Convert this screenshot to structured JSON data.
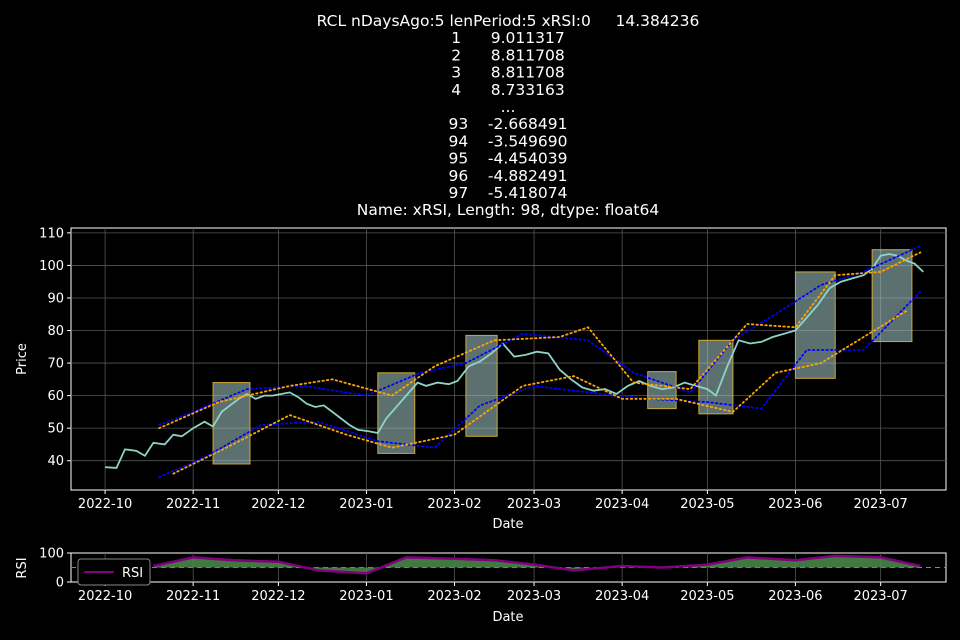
{
  "figure": {
    "title_lines": [
      "RCL nDaysAgo:5 lenPeriod:5 xRSI:0     14.384236",
      "1      9.011317",
      "2      8.811708",
      "3      8.811708",
      "4      8.733163",
      "...",
      "93    -2.668491",
      "94    -3.549690",
      "95    -4.454039",
      "96    -4.882491",
      "97    -5.418074",
      "Name: xRSI, Length: 98, dtype: float64"
    ]
  },
  "colors": {
    "price": "#8dd3c7",
    "bb_outer": "#0000ff",
    "bb_inner": "#ffa500",
    "shade": "#aacccc",
    "shade_edge": "#ccaa33",
    "rsi": "#800080",
    "rsi_fill": "#4c8c4c",
    "grid": "#555555"
  },
  "chart_data": [
    {
      "type": "line",
      "xlabel": "Date",
      "ylabel": "Price",
      "x_ticks": [
        "2022-10",
        "2022-11",
        "2022-12",
        "2023-01",
        "2023-02",
        "2023-03",
        "2023-04",
        "2023-05",
        "2023-06",
        "2023-07"
      ],
      "y_ticks": [
        40,
        50,
        60,
        70,
        80,
        90,
        100,
        110
      ],
      "xlim": [
        "2022-09-19",
        "2023-07-24"
      ],
      "ylim": [
        31,
        111.5
      ],
      "grid": true,
      "series": [
        {
          "role": "price",
          "points": [
            [
              "2022-10-01",
              38
            ],
            [
              "2022-10-05",
              37.8
            ],
            [
              "2022-10-08",
              43.5
            ],
            [
              "2022-10-12",
              43
            ],
            [
              "2022-10-15",
              41.5
            ],
            [
              "2022-10-18",
              45.5
            ],
            [
              "2022-10-22",
              45
            ],
            [
              "2022-10-25",
              48
            ],
            [
              "2022-10-28",
              47.5
            ],
            [
              "2022-11-01",
              50
            ],
            [
              "2022-11-05",
              52
            ],
            [
              "2022-11-08",
              50.5
            ],
            [
              "2022-11-11",
              55
            ],
            [
              "2022-11-14",
              57
            ],
            [
              "2022-11-17",
              59
            ],
            [
              "2022-11-20",
              60.5
            ],
            [
              "2022-11-23",
              59
            ],
            [
              "2022-11-26",
              60
            ],
            [
              "2022-11-29",
              60
            ],
            [
              "2022-12-02",
              60.5
            ],
            [
              "2022-12-05",
              61
            ],
            [
              "2022-12-08",
              59.5
            ],
            [
              "2022-12-11",
              57.5
            ],
            [
              "2022-12-14",
              56.5
            ],
            [
              "2022-12-17",
              57
            ],
            [
              "2022-12-20",
              55
            ],
            [
              "2022-12-23",
              53
            ],
            [
              "2022-12-26",
              51
            ],
            [
              "2022-12-29",
              49.5
            ],
            [
              "2023-01-02",
              49
            ],
            [
              "2023-01-05",
              48.5
            ],
            [
              "2023-01-08",
              53
            ],
            [
              "2023-01-12",
              57
            ],
            [
              "2023-01-15",
              60
            ],
            [
              "2023-01-19",
              64
            ],
            [
              "2023-01-22",
              63
            ],
            [
              "2023-01-26",
              64
            ],
            [
              "2023-01-30",
              63.5
            ],
            [
              "2023-02-02",
              64.5
            ],
            [
              "2023-02-06",
              69
            ],
            [
              "2023-02-10",
              70.5
            ],
            [
              "2023-02-14",
              73
            ],
            [
              "2023-02-18",
              76
            ],
            [
              "2023-02-22",
              72
            ],
            [
              "2023-02-26",
              72.5
            ],
            [
              "2023-03-02",
              73.5
            ],
            [
              "2023-03-06",
              73
            ],
            [
              "2023-03-10",
              68
            ],
            [
              "2023-03-14",
              65
            ],
            [
              "2023-03-18",
              62.5
            ],
            [
              "2023-03-22",
              61.5
            ],
            [
              "2023-03-26",
              62
            ],
            [
              "2023-03-30",
              60.5
            ],
            [
              "2023-04-03",
              63
            ],
            [
              "2023-04-07",
              64.5
            ],
            [
              "2023-04-11",
              63
            ],
            [
              "2023-04-15",
              62
            ],
            [
              "2023-04-19",
              62.5
            ],
            [
              "2023-04-23",
              64
            ],
            [
              "2023-04-27",
              63
            ],
            [
              "2023-05-01",
              62
            ],
            [
              "2023-05-04",
              60
            ],
            [
              "2023-05-08",
              69
            ],
            [
              "2023-05-12",
              77
            ],
            [
              "2023-05-16",
              76
            ],
            [
              "2023-05-20",
              76.5
            ],
            [
              "2023-05-24",
              78
            ],
            [
              "2023-05-28",
              79
            ],
            [
              "2023-06-01",
              80
            ],
            [
              "2023-06-05",
              84
            ],
            [
              "2023-06-09",
              88
            ],
            [
              "2023-06-13",
              93
            ],
            [
              "2023-06-17",
              95
            ],
            [
              "2023-06-21",
              96
            ],
            [
              "2023-06-25",
              97
            ],
            [
              "2023-06-28",
              99
            ],
            [
              "2023-07-01",
              103
            ],
            [
              "2023-07-04",
              103.5
            ],
            [
              "2023-07-07",
              103
            ],
            [
              "2023-07-10",
              101.5
            ],
            [
              "2023-07-13",
              100.5
            ],
            [
              "2023-07-16",
              98
            ]
          ]
        },
        {
          "role": "bb_outer_upper",
          "points": [
            [
              "2022-10-20",
              51
            ],
            [
              "2022-11-01",
              55
            ],
            [
              "2022-11-20",
              62
            ],
            [
              "2022-12-10",
              63
            ],
            [
              "2023-01-01",
              60
            ],
            [
              "2023-01-20",
              67
            ],
            [
              "2023-02-05",
              70
            ],
            [
              "2023-02-25",
              79
            ],
            [
              "2023-03-20",
              77
            ],
            [
              "2023-04-05",
              67
            ],
            [
              "2023-04-25",
              61
            ],
            [
              "2023-05-10",
              77
            ],
            [
              "2023-05-25",
              85
            ],
            [
              "2023-06-10",
              94
            ],
            [
              "2023-06-25",
              98
            ],
            [
              "2023-07-15",
              106
            ]
          ]
        },
        {
          "role": "bb_outer_lower",
          "points": [
            [
              "2022-10-20",
              35
            ],
            [
              "2022-11-05",
              41
            ],
            [
              "2022-11-25",
              51
            ],
            [
              "2022-12-15",
              52
            ],
            [
              "2023-01-05",
              46
            ],
            [
              "2023-01-25",
              44
            ],
            [
              "2023-02-10",
              57
            ],
            [
              "2023-03-01",
              63
            ],
            [
              "2023-03-20",
              61
            ],
            [
              "2023-04-10",
              59
            ],
            [
              "2023-05-01",
              58
            ],
            [
              "2023-05-20",
              56
            ],
            [
              "2023-06-05",
              74
            ],
            [
              "2023-06-25",
              74
            ],
            [
              "2023-07-15",
              92
            ]
          ]
        },
        {
          "role": "bb_inner_upper",
          "points": [
            [
              "2022-10-20",
              50
            ],
            [
              "2022-11-10",
              58
            ],
            [
              "2022-12-05",
              63
            ],
            [
              "2022-12-20",
              65
            ],
            [
              "2023-01-10",
              60
            ],
            [
              "2023-01-25",
              69
            ],
            [
              "2023-02-15",
              77
            ],
            [
              "2023-03-10",
              78
            ],
            [
              "2023-03-20",
              81
            ],
            [
              "2023-04-05",
              64
            ],
            [
              "2023-04-25",
              62
            ],
            [
              "2023-05-15",
              82
            ],
            [
              "2023-06-01",
              81
            ],
            [
              "2023-06-15",
              97
            ],
            [
              "2023-07-01",
              98
            ],
            [
              "2023-07-15",
              104
            ]
          ]
        },
        {
          "role": "bb_inner_lower",
          "points": [
            [
              "2022-10-25",
              36
            ],
            [
              "2022-11-15",
              45
            ],
            [
              "2022-12-05",
              54
            ],
            [
              "2022-12-25",
              48
            ],
            [
              "2023-01-10",
              44
            ],
            [
              "2023-02-01",
              48
            ],
            [
              "2023-02-25",
              63
            ],
            [
              "2023-03-15",
              66
            ],
            [
              "2023-04-01",
              59
            ],
            [
              "2023-04-20",
              59
            ],
            [
              "2023-05-10",
              55
            ],
            [
              "2023-05-25",
              67
            ],
            [
              "2023-06-10",
              70
            ],
            [
              "2023-06-25",
              78
            ],
            [
              "2023-07-10",
              86
            ]
          ]
        }
      ],
      "shaded_ranges": [
        [
          "2022-11-08",
          "2022-11-21"
        ],
        [
          "2023-01-05",
          "2023-01-18"
        ],
        [
          "2023-02-05",
          "2023-02-16"
        ],
        [
          "2023-04-10",
          "2023-04-20"
        ],
        [
          "2023-04-28",
          "2023-05-10"
        ],
        [
          "2023-06-01",
          "2023-06-15"
        ],
        [
          "2023-06-28",
          "2023-07-12"
        ]
      ]
    },
    {
      "type": "area",
      "xlabel": "Date",
      "ylabel": "RSI",
      "x_ticks": [
        "2022-10",
        "2022-11",
        "2022-12",
        "2023-01",
        "2023-02",
        "2023-03",
        "2023-04",
        "2023-05",
        "2023-06",
        "2023-07"
      ],
      "y_ticks": [
        0,
        100
      ],
      "ylim": [
        0,
        100
      ],
      "reference_line": 50,
      "legend": {
        "position": "upper-left",
        "label": "RSI"
      },
      "series": [
        {
          "name": "RSI",
          "points": [
            [
              "2022-10-18",
              55
            ],
            [
              "2022-11-01",
              85
            ],
            [
              "2022-11-15",
              75
            ],
            [
              "2022-12-01",
              70
            ],
            [
              "2022-12-15",
              40
            ],
            [
              "2023-01-01",
              30
            ],
            [
              "2023-01-15",
              85
            ],
            [
              "2023-02-01",
              80
            ],
            [
              "2023-02-15",
              75
            ],
            [
              "2023-03-01",
              60
            ],
            [
              "2023-03-15",
              40
            ],
            [
              "2023-04-01",
              55
            ],
            [
              "2023-04-15",
              50
            ],
            [
              "2023-05-01",
              60
            ],
            [
              "2023-05-15",
              85
            ],
            [
              "2023-06-01",
              75
            ],
            [
              "2023-06-15",
              90
            ],
            [
              "2023-07-01",
              85
            ],
            [
              "2023-07-15",
              55
            ]
          ]
        }
      ]
    }
  ]
}
